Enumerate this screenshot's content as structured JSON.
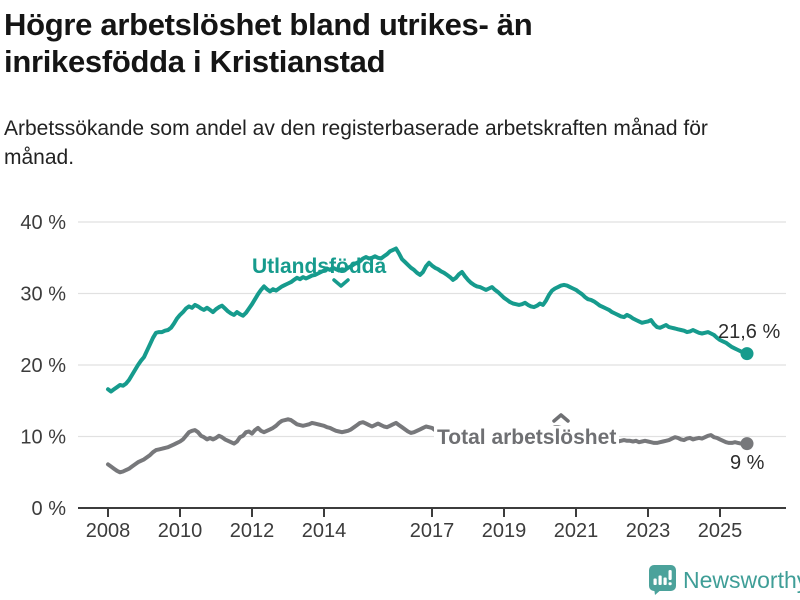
{
  "header": {
    "title": "Högre arbetslöshet bland utrikes- än inrikesfödda i Kristianstad",
    "subtitle": "Arbetssökande som andel av den registerbaserade arbetskraften månad för månad."
  },
  "colors": {
    "accent_teal": "#169b8d",
    "line_gray": "#77787b",
    "label_gray": "#6f7073",
    "axis": "#3c3c3c",
    "gridline": "#e1e1e1",
    "value_label": "#2d2d2d",
    "brand_teal": "#3f9e97",
    "brand_icon_teal": "#4ba29b"
  },
  "footer": {
    "brand": "Newsworthy"
  },
  "chart_data": {
    "type": "line",
    "x_unit": "month",
    "x_start_year": 2008,
    "x_end_label_period": "2025",
    "ylim": [
      0,
      40
    ],
    "grid": true,
    "y_axis_ticks": [
      {
        "value": 0,
        "label": "0 %"
      },
      {
        "value": 10,
        "label": "10 %"
      },
      {
        "value": 20,
        "label": "20 %"
      },
      {
        "value": 30,
        "label": "30 %"
      },
      {
        "value": 40,
        "label": "40 %"
      }
    ],
    "x_axis_ticks": [
      {
        "year": 2008,
        "label": "2008"
      },
      {
        "year": 2010,
        "label": "2010"
      },
      {
        "year": 2012,
        "label": "2012"
      },
      {
        "year": 2014,
        "label": "2014"
      },
      {
        "year": 2017,
        "label": "2017"
      },
      {
        "year": 2019,
        "label": "2019"
      },
      {
        "year": 2021,
        "label": "2021"
      },
      {
        "year": 2023,
        "label": "2023"
      },
      {
        "year": 2025,
        "label": "2025"
      }
    ],
    "series": [
      {
        "name": "Utlandsfödda",
        "color": "#169b8d",
        "end_label": "21,6 %",
        "end_value": 21.6,
        "values": [
          16.6,
          16.3,
          16.6,
          16.9,
          17.2,
          17.1,
          17.4,
          17.9,
          18.6,
          19.3,
          20.0,
          20.6,
          21.1,
          22.0,
          22.9,
          23.8,
          24.5,
          24.6,
          24.6,
          24.8,
          24.9,
          25.2,
          25.8,
          26.5,
          27.0,
          27.4,
          27.9,
          28.2,
          28.0,
          28.4,
          28.2,
          27.9,
          27.7,
          28.0,
          27.7,
          27.4,
          27.8,
          28.1,
          28.3,
          27.9,
          27.5,
          27.2,
          27.0,
          27.4,
          27.1,
          26.9,
          27.3,
          27.9,
          28.5,
          29.2,
          29.9,
          30.5,
          31.0,
          30.6,
          30.3,
          30.6,
          30.4,
          30.7,
          31.0,
          31.2,
          31.4,
          31.6,
          31.9,
          32.2,
          32.0,
          32.3,
          32.1,
          32.3,
          32.5,
          32.6,
          32.8,
          33.0,
          33.2,
          33.5,
          33.3,
          33.6,
          33.4,
          33.2,
          33.4,
          33.3,
          33.6,
          33.8,
          34.1,
          34.3,
          34.5,
          34.9,
          35.1,
          34.9,
          35.0,
          35.2,
          35.0,
          34.9,
          35.2,
          35.5,
          35.9,
          36.1,
          36.3,
          35.6,
          34.8,
          34.4,
          34.0,
          33.6,
          33.3,
          32.9,
          32.6,
          33.0,
          33.8,
          34.3,
          33.9,
          33.6,
          33.4,
          33.1,
          32.9,
          32.6,
          32.3,
          31.9,
          32.2,
          32.7,
          33.0,
          32.4,
          31.9,
          31.5,
          31.2,
          31.0,
          30.9,
          30.7,
          30.5,
          30.7,
          30.9,
          30.5,
          30.2,
          29.8,
          29.4,
          29.1,
          28.8,
          28.6,
          28.5,
          28.4,
          28.5,
          28.7,
          28.4,
          28.2,
          28.1,
          28.3,
          28.6,
          28.4,
          29.0,
          29.8,
          30.4,
          30.7,
          30.9,
          31.1,
          31.2,
          31.1,
          30.9,
          30.7,
          30.5,
          30.2,
          29.9,
          29.5,
          29.2,
          29.1,
          28.9,
          28.6,
          28.3,
          28.1,
          27.9,
          27.7,
          27.4,
          27.2,
          27.0,
          26.8,
          26.7,
          27.0,
          26.8,
          26.5,
          26.3,
          26.1,
          25.9,
          26.0,
          26.1,
          26.3,
          25.7,
          25.3,
          25.2,
          25.4,
          25.6,
          25.3,
          25.2,
          25.1,
          25.0,
          24.9,
          24.8,
          24.6,
          24.7,
          24.9,
          24.7,
          24.5,
          24.4,
          24.5,
          24.6,
          24.4,
          24.2,
          23.8,
          23.5,
          23.3,
          23.1,
          22.8,
          22.5,
          22.3,
          22.1,
          21.9,
          21.7,
          21.6
        ]
      },
      {
        "name": "Total arbetslöshet",
        "color": "#77787b",
        "end_label": "9 %",
        "end_value": 9.0,
        "values": [
          6.1,
          5.8,
          5.5,
          5.2,
          5.0,
          5.1,
          5.3,
          5.5,
          5.8,
          6.1,
          6.4,
          6.6,
          6.8,
          7.1,
          7.4,
          7.8,
          8.1,
          8.2,
          8.3,
          8.4,
          8.5,
          8.7,
          8.9,
          9.1,
          9.3,
          9.6,
          10.1,
          10.6,
          10.8,
          10.9,
          10.6,
          10.1,
          9.9,
          9.6,
          9.8,
          9.6,
          9.8,
          10.1,
          9.9,
          9.6,
          9.4,
          9.2,
          9.0,
          9.3,
          9.9,
          10.1,
          10.6,
          10.7,
          10.4,
          10.9,
          11.2,
          10.8,
          10.6,
          10.8,
          11.0,
          11.2,
          11.5,
          11.9,
          12.2,
          12.3,
          12.4,
          12.3,
          12.0,
          11.7,
          11.6,
          11.5,
          11.6,
          11.7,
          11.9,
          11.8,
          11.7,
          11.6,
          11.5,
          11.3,
          11.2,
          11.0,
          10.8,
          10.7,
          10.6,
          10.7,
          10.8,
          11.0,
          11.3,
          11.6,
          11.9,
          12.0,
          11.8,
          11.6,
          11.4,
          11.6,
          11.8,
          11.6,
          11.4,
          11.3,
          11.5,
          11.7,
          11.9,
          11.6,
          11.3,
          11.0,
          10.7,
          10.5,
          10.6,
          10.8,
          11.0,
          11.2,
          11.4,
          11.3,
          11.2,
          10.9,
          10.7,
          10.5,
          10.3,
          10.2,
          10.1,
          10.0,
          9.9,
          9.9,
          9.8,
          9.8,
          9.9,
          9.8,
          9.7,
          9.6,
          9.5,
          9.4,
          9.4,
          9.3,
          9.3,
          9.2,
          9.2,
          9.1,
          9.1,
          9.0,
          9.0,
          8.9,
          8.9,
          9.0,
          9.0,
          9.1,
          9.1,
          9.2,
          9.3,
          9.4,
          9.6,
          9.8,
          10.3,
          10.8,
          11.1,
          11.3,
          11.3,
          11.2,
          11.1,
          11.0,
          10.9,
          10.8,
          10.7,
          10.5,
          10.3,
          10.1,
          9.9,
          9.8,
          9.6,
          9.5,
          9.4,
          9.3,
          9.3,
          9.4,
          9.4,
          9.3,
          9.3,
          9.4,
          9.5,
          9.4,
          9.4,
          9.3,
          9.4,
          9.2,
          9.3,
          9.4,
          9.3,
          9.2,
          9.1,
          9.1,
          9.2,
          9.3,
          9.4,
          9.5,
          9.7,
          9.9,
          9.8,
          9.6,
          9.5,
          9.7,
          9.8,
          9.6,
          9.7,
          9.8,
          9.7,
          9.9,
          10.1,
          10.2,
          9.9,
          9.8,
          9.6,
          9.4,
          9.2,
          9.1,
          9.1,
          9.2,
          9.1,
          9.0,
          9.0,
          9.0
        ]
      }
    ]
  }
}
